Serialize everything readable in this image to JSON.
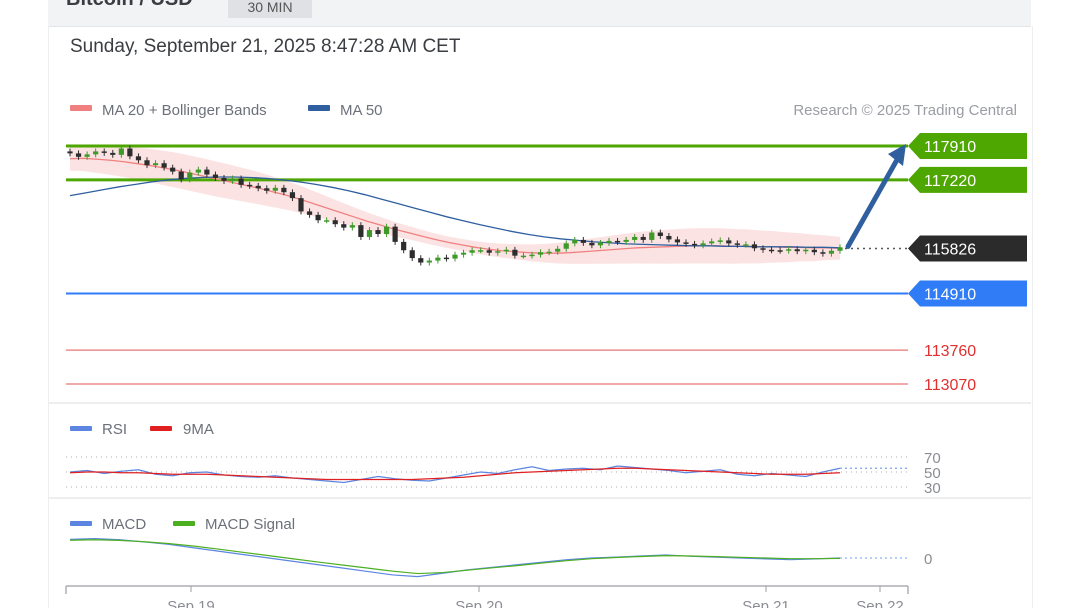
{
  "header": {
    "instrument": "Bitcoin / USD",
    "timeframe": "30 MIN",
    "datetime": "Sunday, September 21, 2025 8:47:28 AM CET"
  },
  "main_legend": {
    "ma20": {
      "label": "MA 20 + Bollinger Bands",
      "color": "#f08080"
    },
    "ma50": {
      "label": "MA 50",
      "color": "#2f5f9f"
    },
    "credit": "Research © 2025 Trading Central"
  },
  "rsi_legend": {
    "rsi": {
      "label": "RSI",
      "color": "#5b85e0"
    },
    "ma9": {
      "label": "9MA",
      "color": "#e02020"
    }
  },
  "macd_legend": {
    "macd": {
      "label": "MACD",
      "color": "#5b85e0"
    },
    "signal": {
      "label": "MACD Signal",
      "color": "#4caf20"
    }
  },
  "chart_data": {
    "type": "candlestick",
    "x_axis_labels": [
      "Sep 19",
      "Sep 20",
      "Sep 21",
      "Sep 22"
    ],
    "current_price": {
      "label": "115826",
      "value": 115826,
      "color": "#2b2b2b"
    },
    "levels": [
      {
        "label": "117910",
        "value": 117910,
        "kind": "resistance-target",
        "color": "#4ea600"
      },
      {
        "label": "117220",
        "value": 117220,
        "kind": "resistance",
        "color": "#4ea600"
      },
      {
        "label": "114910",
        "value": 114910,
        "kind": "pivot",
        "color": "#2f7cf6"
      },
      {
        "label": "113760",
        "value": 113760,
        "kind": "support",
        "color": "#e03030"
      },
      {
        "label": "113070",
        "value": 113070,
        "kind": "support",
        "color": "#e03030"
      }
    ],
    "price_scale": {
      "min": 113070,
      "max": 117910
    },
    "close_prices": [
      117760,
      117690,
      117740,
      117800,
      117770,
      117730,
      117860,
      117700,
      117620,
      117520,
      117560,
      117470,
      117390,
      117230,
      117370,
      117430,
      117330,
      117260,
      117200,
      117250,
      117120,
      117100,
      117050,
      117000,
      117060,
      116970,
      116850,
      116580,
      116510,
      116400,
      116400,
      116320,
      116250,
      116300,
      116060,
      116200,
      116120,
      116270,
      115960,
      115790,
      115630,
      115540,
      115580,
      115640,
      115620,
      115700,
      115740,
      115790,
      115790,
      115740,
      115770,
      115800,
      115680,
      115680,
      115700,
      115750,
      115760,
      115820,
      115930,
      116000,
      115940,
      115890,
      115940,
      115980,
      115960,
      116000,
      116060,
      116000,
      116150,
      116080,
      116010,
      115950,
      115920,
      115890,
      115930,
      115970,
      115990,
      115930,
      115900,
      115910,
      115830,
      115800,
      115790,
      115780,
      115810,
      115770,
      115800,
      115750,
      115720,
      115780,
      115850
    ],
    "ma20": [
      117650,
      117660,
      117640,
      117620,
      117590,
      117550,
      117510,
      117460,
      117410,
      117350,
      117290,
      117230,
      117170,
      117110,
      117050,
      116980,
      116910,
      116830,
      116740,
      116650,
      116560,
      116470,
      116380,
      116300,
      116220,
      116150,
      116080,
      116010,
      115950,
      115900,
      115850,
      115810,
      115780,
      115760,
      115740,
      115730,
      115730,
      115740,
      115760,
      115780,
      115800,
      115820,
      115840,
      115850,
      115860,
      115870,
      115880,
      115880,
      115880,
      115870,
      115870,
      115860,
      115860,
      115850,
      115850,
      115840,
      115840,
      115830
    ],
    "ma50": [
      116900,
      116960,
      117020,
      117080,
      117130,
      117180,
      117220,
      117250,
      117270,
      117280,
      117280,
      117270,
      117250,
      117220,
      117180,
      117130,
      117070,
      117000,
      116920,
      116830,
      116740,
      116650,
      116560,
      116470,
      116390,
      116310,
      116240,
      116170,
      116110,
      116060,
      116020,
      115990,
      115960,
      115940,
      115920,
      115910,
      115900,
      115890,
      115880,
      115880,
      115870,
      115870,
      115860,
      115860,
      115860,
      115850,
      115850,
      115840
    ],
    "rsi": {
      "levels": [
        "70",
        "50",
        "30"
      ],
      "values": [
        50,
        52,
        48,
        51,
        53,
        47,
        45,
        49,
        50,
        46,
        44,
        43,
        45,
        42,
        40,
        38,
        36,
        40,
        44,
        41,
        39,
        38,
        42,
        46,
        50,
        48,
        53,
        57,
        52,
        54,
        55,
        53,
        58,
        56,
        54,
        52,
        49,
        51,
        53,
        47,
        45,
        48,
        46,
        44,
        50,
        55
      ],
      "ma9": [
        49,
        50,
        50,
        49,
        49,
        48,
        47,
        47,
        47,
        46,
        45,
        44,
        43,
        42,
        41,
        40,
        40,
        40,
        40,
        40,
        40,
        41,
        42,
        43,
        45,
        47,
        49,
        50,
        51,
        52,
        53,
        54,
        55,
        55,
        54,
        53,
        52,
        51,
        50,
        49,
        48,
        47,
        47,
        47,
        48,
        49
      ]
    },
    "macd": {
      "zero_label": "0",
      "macd": [
        110,
        115,
        108,
        95,
        80,
        60,
        40,
        20,
        0,
        -20,
        -40,
        -60,
        -80,
        -100,
        -110,
        -90,
        -70,
        -55,
        -40,
        -25,
        -10,
        0,
        5,
        12,
        18,
        10,
        5,
        0,
        -5,
        -10,
        -5,
        0
      ],
      "signal": [
        105,
        108,
        104,
        96,
        85,
        70,
        52,
        33,
        14,
        -5,
        -24,
        -42,
        -60,
        -78,
        -92,
        -86,
        -72,
        -58,
        -45,
        -30,
        -16,
        -4,
        3,
        9,
        14,
        12,
        8,
        4,
        0,
        -4,
        -4,
        -2
      ]
    }
  }
}
